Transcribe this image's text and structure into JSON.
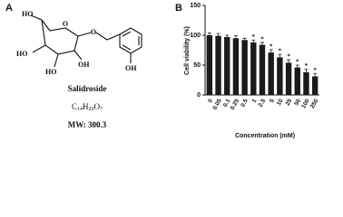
{
  "panel_a": {
    "label": "A",
    "atoms": [
      "HO",
      "O",
      "O",
      "HO",
      "HO",
      "OH",
      "OH"
    ],
    "name": "Salidroside",
    "formula": [
      "C",
      "14",
      "H",
      "20",
      "O",
      "7"
    ],
    "mw": "MW: 300.3"
  },
  "chart_data": {
    "type": "bar",
    "panel_label": "B",
    "x_label": "Concentration (mM)",
    "y_label": "Cell viability (%)",
    "categories": [
      "0",
      "0.05",
      "0.1",
      "0.25",
      "0.5",
      "1",
      "2.5",
      "5",
      "10",
      "25",
      "50",
      "100",
      "250"
    ],
    "series": [
      {
        "color": "#1a1a1a",
        "values": [
          100,
          99,
          97,
          95,
          92,
          88,
          84,
          71,
          63,
          54,
          46,
          38,
          31
        ],
        "errors": [
          4,
          4,
          3,
          4,
          3,
          4,
          4,
          5,
          5,
          5,
          4,
          5,
          5
        ],
        "significance": [
          null,
          null,
          null,
          null,
          null,
          "*",
          "*",
          "*",
          "*",
          "*",
          "*",
          "*",
          "*"
        ]
      }
    ],
    "ylim": [
      0,
      150
    ],
    "yticks": [
      0,
      50,
      100,
      150
    ]
  }
}
